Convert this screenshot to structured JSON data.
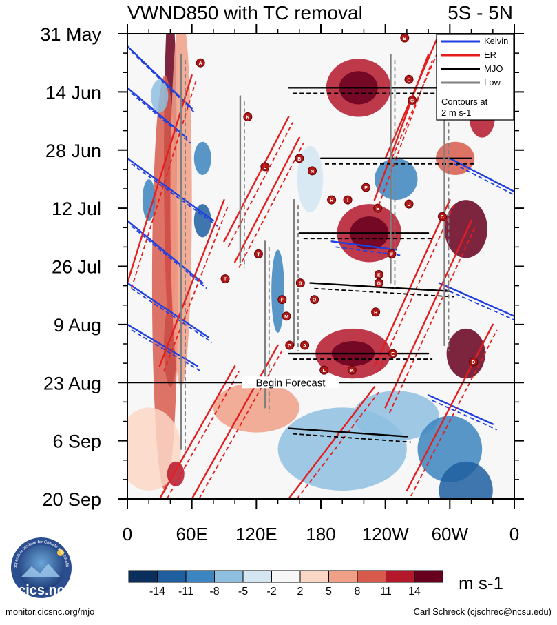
{
  "chart_data": {
    "type": "heatmap",
    "title": "VWND850 with TC removal",
    "region": "5S - 5N",
    "xlabel": "",
    "ylabel": "",
    "x_ticks": [
      "0",
      "60E",
      "120E",
      "180",
      "120W",
      "60W",
      "0"
    ],
    "x_tick_values": [
      0,
      60,
      120,
      180,
      240,
      300,
      360
    ],
    "xlim": [
      0,
      360
    ],
    "y_ticks": [
      "31 May",
      "14 Jun",
      "28 Jun",
      "12 Jul",
      "26 Jul",
      "9 Aug",
      "23 Aug",
      "6 Sep",
      "20 Sep"
    ],
    "y_tick_days": [
      0,
      14,
      28,
      42,
      56,
      70,
      84,
      98,
      112
    ],
    "forecast": {
      "label": "Begin Forecast",
      "day": 84
    },
    "colorbar": {
      "unit": "m s-1",
      "labels": [
        "-14",
        "-11",
        "-8",
        "-5",
        "-2",
        "2",
        "5",
        "8",
        "11",
        "14"
      ],
      "colors": [
        "#0a2f5c",
        "#1f5fa0",
        "#3d85c0",
        "#8ebfdf",
        "#d3e6f2",
        "#f7f7f7",
        "#fbd7c5",
        "#f1a088",
        "#d85a4c",
        "#b4182b",
        "#67001f"
      ]
    },
    "legend": {
      "items": [
        {
          "name": "Kelvin",
          "color": "#1f3fe0"
        },
        {
          "name": "ER",
          "color": "#e41e1e"
        },
        {
          "name": "MJO",
          "color": "#000000"
        },
        {
          "name": "Low",
          "color": "#808080"
        }
      ],
      "note_line1": "Contours at",
      "note_line2": "2 m s-1"
    },
    "tc_markers": [
      {
        "letter": "B",
        "lon": 258,
        "day": 1
      },
      {
        "letter": "A",
        "lon": 68,
        "day": 7
      },
      {
        "letter": "C",
        "lon": 262,
        "day": 11
      },
      {
        "letter": "G",
        "lon": 265,
        "day": 16
      },
      {
        "letter": "K",
        "lon": 112,
        "day": 20
      },
      {
        "letter": "B",
        "lon": 160,
        "day": 30
      },
      {
        "letter": "L",
        "lon": 128,
        "day": 32
      },
      {
        "letter": "N",
        "lon": 172,
        "day": 33
      },
      {
        "letter": "E",
        "lon": 222,
        "day": 37
      },
      {
        "letter": "H",
        "lon": 190,
        "day": 40
      },
      {
        "letter": "I",
        "lon": 205,
        "day": 40
      },
      {
        "letter": "D",
        "lon": 262,
        "day": 41
      },
      {
        "letter": "E",
        "lon": 233,
        "day": 42
      },
      {
        "letter": "C",
        "lon": 293,
        "day": 44
      },
      {
        "letter": "F",
        "lon": 246,
        "day": 53
      },
      {
        "letter": "T",
        "lon": 122,
        "day": 53
      },
      {
        "letter": "T",
        "lon": 91,
        "day": 59
      },
      {
        "letter": "E",
        "lon": 234,
        "day": 58
      },
      {
        "letter": "S",
        "lon": 161,
        "day": 60
      },
      {
        "letter": "G",
        "lon": 234,
        "day": 60
      },
      {
        "letter": "F",
        "lon": 144,
        "day": 64
      },
      {
        "letter": "O",
        "lon": 174,
        "day": 64
      },
      {
        "letter": "H",
        "lon": 231,
        "day": 67
      },
      {
        "letter": "M",
        "lon": 148,
        "day": 68
      },
      {
        "letter": "G",
        "lon": 151,
        "day": 75
      },
      {
        "letter": "A",
        "lon": 165,
        "day": 75
      },
      {
        "letter": "E",
        "lon": 247,
        "day": 77
      },
      {
        "letter": "D",
        "lon": 322,
        "day": 79
      },
      {
        "letter": "K",
        "lon": 209,
        "day": 81
      },
      {
        "letter": "L",
        "lon": 183,
        "day": 81
      }
    ]
  },
  "footer": {
    "left": "monitor.cicsnc.org/mjo",
    "right": "Carl Schreck (cjschrec@ncsu.edu)"
  },
  "logo": {
    "text": "cics.nc",
    "ring_text": "Cooperative Institute for Climate and Satellites"
  }
}
